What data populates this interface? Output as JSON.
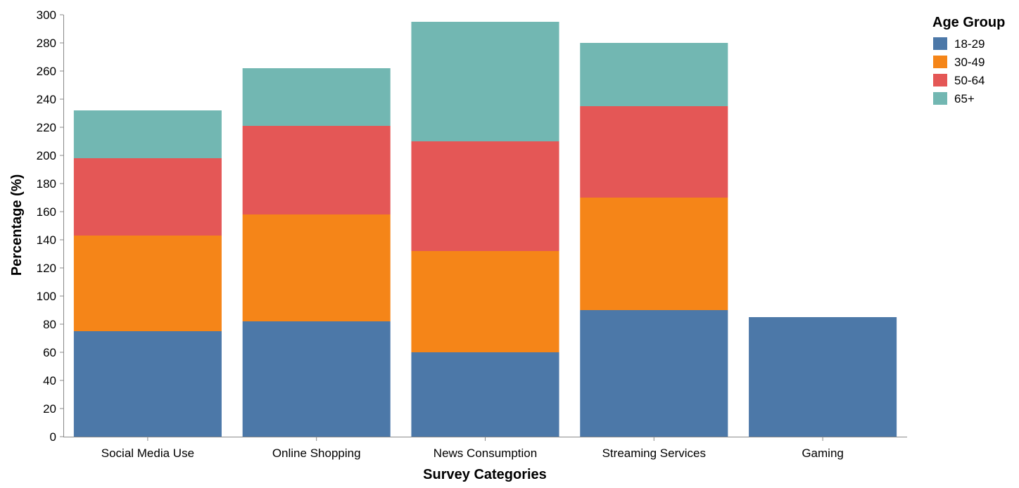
{
  "chart_data": {
    "type": "bar",
    "stacked": true,
    "categories": [
      "Social Media Use",
      "Online Shopping",
      "News Consumption",
      "Streaming Services",
      "Gaming"
    ],
    "series": [
      {
        "name": "18-29",
        "color": "#4c78a8",
        "values": [
          75,
          82,
          60,
          90,
          85
        ]
      },
      {
        "name": "30-49",
        "color": "#f58518",
        "values": [
          68,
          76,
          72,
          80,
          0
        ]
      },
      {
        "name": "50-64",
        "color": "#e45756",
        "values": [
          55,
          63,
          78,
          65,
          0
        ]
      },
      {
        "name": "65+",
        "color": "#72b7b2",
        "values": [
          34,
          41,
          85,
          45,
          0
        ]
      }
    ],
    "xlabel": "Survey Categories",
    "ylabel": "Percentage (%)",
    "ylim": [
      0,
      300
    ],
    "yticks": [
      0,
      20,
      40,
      60,
      80,
      100,
      120,
      140,
      160,
      180,
      200,
      220,
      240,
      260,
      280,
      300
    ],
    "grid": false,
    "legend": {
      "title": "Age Group",
      "placement": "top-right"
    }
  }
}
